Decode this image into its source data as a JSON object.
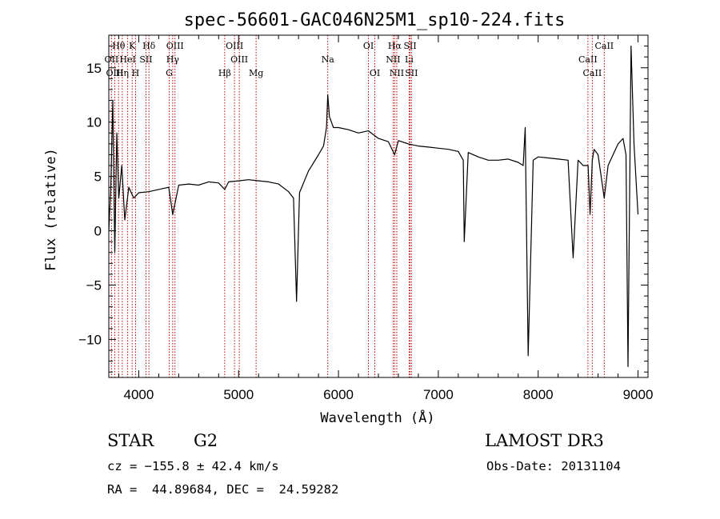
{
  "chart_data": {
    "type": "line",
    "title": "spec-56601-GAC046N25M1_sp10-224.fits",
    "xlabel": "Wavelength (Å)",
    "ylabel": "Flux (relative)",
    "xlim": [
      3700,
      9100
    ],
    "ylim": [
      -13.5,
      18
    ],
    "xticks": [
      4000,
      5000,
      6000,
      7000,
      8000,
      9000
    ],
    "yticks": [
      -10,
      -5,
      0,
      5,
      10,
      15
    ],
    "xtick_labels": [
      "4000",
      "5000",
      "6000",
      "7000",
      "8000",
      "9000"
    ],
    "ytick_labels": [
      "−10",
      "−5",
      "0",
      "5",
      "10",
      "15"
    ],
    "series": [
      {
        "name": "spectrum",
        "color": "#000000",
        "x": [
          3700,
          3720,
          3740,
          3760,
          3780,
          3800,
          3830,
          3860,
          3900,
          3950,
          4000,
          4100,
          4200,
          4300,
          4340,
          4400,
          4500,
          4600,
          4700,
          4800,
          4861,
          4900,
          5000,
          5100,
          5200,
          5300,
          5400,
          5500,
          5550,
          5580,
          5610,
          5700,
          5800,
          5850,
          5880,
          5893,
          5910,
          5950,
          6000,
          6100,
          6200,
          6300,
          6400,
          6500,
          6563,
          6600,
          6700,
          6800,
          6900,
          7000,
          7100,
          7200,
          7250,
          7260,
          7300,
          7400,
          7500,
          7600,
          7700,
          7800,
          7850,
          7870,
          7900,
          7950,
          8000,
          8100,
          8200,
          8300,
          8350,
          8400,
          8450,
          8500,
          8520,
          8542,
          8560,
          8600,
          8662,
          8700,
          8750,
          8800,
          8850,
          8880,
          8900,
          8930,
          8960,
          9000
        ],
        "y": [
          0,
          4,
          12,
          -2,
          9,
          3,
          6,
          1,
          4,
          3,
          3.5,
          3.6,
          3.8,
          4,
          1.5,
          4.2,
          4.3,
          4.2,
          4.5,
          4.4,
          3.8,
          4.5,
          4.6,
          4.7,
          4.6,
          4.5,
          4.3,
          3.6,
          3.0,
          -6.5,
          3.5,
          5.5,
          7.0,
          7.8,
          9.5,
          12.5,
          10.5,
          9.5,
          9.5,
          9.3,
          9.0,
          9.2,
          8.5,
          8.2,
          7.0,
          8.3,
          8.0,
          7.8,
          7.7,
          7.6,
          7.5,
          7.3,
          6.5,
          -1.0,
          7.2,
          6.8,
          6.5,
          6.5,
          6.6,
          6.3,
          6.0,
          9.5,
          -11.5,
          6.5,
          6.8,
          6.7,
          6.6,
          6.5,
          -2.5,
          6.5,
          6.0,
          6.0,
          1.5,
          6.5,
          7.5,
          7.0,
          3.0,
          6.0,
          7.0,
          8.0,
          8.5,
          7.0,
          -12.5,
          17.0,
          8.0,
          1.5
        ]
      }
    ],
    "line_markers": [
      {
        "name": "Hθ",
        "wavelength": 3798,
        "row": 1
      },
      {
        "name": "OII",
        "wavelength": 3727,
        "row": 2
      },
      {
        "name": "OIII",
        "wavelength": 3760,
        "row": 3
      },
      {
        "name": "K",
        "wavelength": 3934,
        "row": 1
      },
      {
        "name": "HeI",
        "wavelength": 3889,
        "row": 2
      },
      {
        "name": "Hη",
        "wavelength": 3835,
        "row": 3
      },
      {
        "name": "SII",
        "wavelength": 4072,
        "row": 2
      },
      {
        "name": "H",
        "wavelength": 3968,
        "row": 3
      },
      {
        "name": "Hδ",
        "wavelength": 4102,
        "row": 1
      },
      {
        "name": "OIII",
        "wavelength": 4363,
        "row": 1
      },
      {
        "name": "Hγ",
        "wavelength": 4340,
        "row": 2
      },
      {
        "name": "G",
        "wavelength": 4305,
        "row": 3
      },
      {
        "name": "Hβ",
        "wavelength": 4861,
        "row": 3
      },
      {
        "name": "OIII",
        "wavelength": 4959,
        "row": 1
      },
      {
        "name": "OIII",
        "wavelength": 5007,
        "row": 2
      },
      {
        "name": "Mg",
        "wavelength": 5175,
        "row": 3
      },
      {
        "name": "Na",
        "wavelength": 5893,
        "row": 2
      },
      {
        "name": "OI",
        "wavelength": 6300,
        "row": 1
      },
      {
        "name": "OI",
        "wavelength": 6364,
        "row": 3
      },
      {
        "name": "Hα",
        "wavelength": 6563,
        "row": 1
      },
      {
        "name": "SII",
        "wavelength": 6717,
        "row": 1
      },
      {
        "name": "NII",
        "wavelength": 6548,
        "row": 2
      },
      {
        "name": "Li",
        "wavelength": 6708,
        "row": 2
      },
      {
        "name": "NII",
        "wavelength": 6584,
        "row": 3
      },
      {
        "name": "SII",
        "wavelength": 6731,
        "row": 3
      },
      {
        "name": "CaII",
        "wavelength": 8662,
        "row": 1
      },
      {
        "name": "CaII",
        "wavelength": 8498,
        "row": 2
      },
      {
        "name": "CaII",
        "wavelength": 8542,
        "row": 3
      }
    ],
    "line_marker_color": "#c00000"
  },
  "info": {
    "object_class": "STAR",
    "subclass": "G2",
    "survey": "LAMOST DR3",
    "velocity": "cz = −155.8 ± 42.4 km/s",
    "obs_date": "Obs-Date: 20131104",
    "coordinates": "RA =  44.89684, DEC =  24.59282"
  }
}
